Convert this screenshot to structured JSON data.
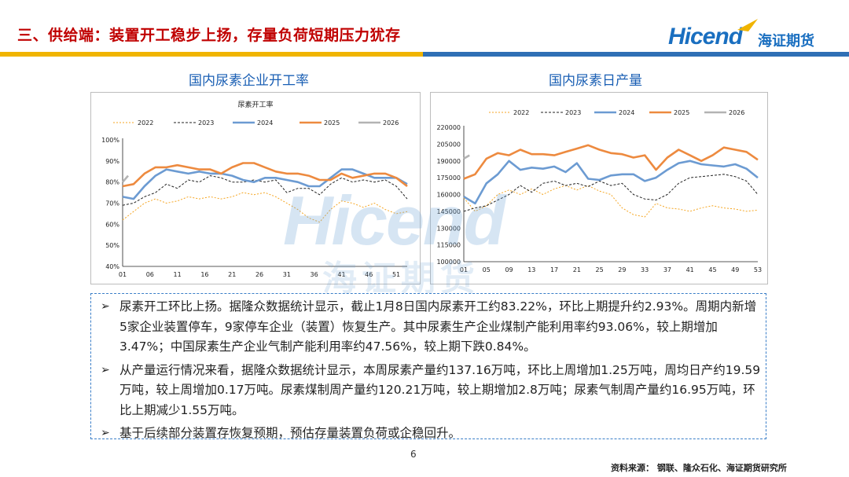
{
  "header": {
    "title": "三、供给端：装置开工稳步上扬，存量负荷短期压力犹存",
    "logo_text": "Hicend",
    "logo_cn": "海证期货"
  },
  "colors": {
    "title": "#c00000",
    "brand_blue": "#1a6fc0",
    "bar_yellow": "#f0b400",
    "bar_blue": "#2f6fb5",
    "s2022": "#f5a623",
    "s2023": "#222222",
    "s2024": "#6c9bd2",
    "s2025": "#ed8a3f",
    "s2026": "#b3b3b3"
  },
  "chart_titles": [
    "国内尿素企业开工率",
    "国内尿素日产量"
  ],
  "bullets": [
    "尿素开工环比上扬。据隆众数据统计显示，截止1月8日国内尿素开工约83.22%，环比上期提升约2.93%。周期内新增5家企业装置停车，9家停车企业（装置）恢复生产。其中尿素生产企业煤制产能利用率约93.06%，较上期增加3.47%；中国尿素生产企业气制产能利用率约47.56%，较上期下跌0.84%。",
    "从产量运行情况来看，据隆众数据统计显示，本周尿素产量约137.16万吨，环比上周增加1.25万吨，周均日产约19.59万吨，较上周增加0.17万吨。尿素煤制周产量约120.21万吨，较上期增加2.8万吨；尿素气制周产量约16.95万吨，环比上期减少1.55万吨。",
    "基于后续部分装置存恢复预期，预估存量装置负荷或企稳回升。"
  ],
  "page_number": "6",
  "source": "资料来源：  钢联、隆众石化、海证期货研究所",
  "chart_data": [
    {
      "type": "line",
      "title": "尿素开工率",
      "ylim": [
        40,
        100
      ],
      "yticks": [
        "100%",
        "90%",
        "80%",
        "70%",
        "60%",
        "50%",
        "40%"
      ],
      "ytick_values": [
        100,
        90,
        80,
        70,
        60,
        50,
        40
      ],
      "xlim": [
        1,
        53
      ],
      "xticks": [
        "01",
        "06",
        "11",
        "16",
        "21",
        "26",
        "31",
        "36",
        "41",
        "46",
        "51"
      ],
      "xtick_values": [
        1,
        6,
        11,
        16,
        21,
        26,
        31,
        36,
        41,
        46,
        51
      ],
      "legend_position": "top",
      "series": [
        {
          "name": "2022",
          "style": "dotted",
          "x": [
            1,
            3,
            5,
            7,
            9,
            11,
            13,
            15,
            17,
            19,
            21,
            23,
            25,
            27,
            29,
            31,
            33,
            35,
            37,
            39,
            41,
            43,
            45,
            47,
            49,
            51,
            53
          ],
          "values": [
            62,
            66,
            70,
            72,
            70,
            71,
            73,
            72,
            73,
            72,
            73,
            75,
            74,
            75,
            73,
            70,
            67,
            63,
            61,
            67,
            71,
            70,
            68,
            70,
            67,
            65,
            66
          ]
        },
        {
          "name": "2023",
          "style": "dashed",
          "x": [
            1,
            3,
            5,
            7,
            9,
            11,
            13,
            15,
            17,
            19,
            21,
            23,
            25,
            27,
            29,
            31,
            33,
            35,
            37,
            39,
            41,
            43,
            45,
            47,
            49,
            51,
            53
          ],
          "values": [
            69,
            70,
            73,
            75,
            79,
            77,
            81,
            80,
            83,
            82,
            80,
            80,
            81,
            80,
            81,
            75,
            77,
            77,
            74,
            79,
            82,
            80,
            81,
            80,
            81,
            78,
            72
          ]
        },
        {
          "name": "2024",
          "style": "solid",
          "x": [
            1,
            3,
            5,
            7,
            9,
            11,
            13,
            15,
            17,
            19,
            21,
            23,
            25,
            27,
            29,
            31,
            33,
            35,
            37,
            39,
            41,
            43,
            45,
            47,
            49,
            51,
            53
          ],
          "values": [
            73,
            72,
            78,
            83,
            86,
            85,
            84,
            85,
            84,
            84,
            83,
            81,
            80,
            82,
            82,
            81,
            80,
            78,
            78,
            82,
            86,
            86,
            84,
            82,
            82,
            82,
            79
          ]
        },
        {
          "name": "2025",
          "style": "solid",
          "x": [
            1,
            3,
            5,
            7,
            9,
            11,
            13,
            15,
            17,
            19,
            21,
            23,
            25,
            27,
            29,
            31,
            33,
            35,
            37,
            39,
            41,
            43,
            45,
            47,
            49,
            51,
            53
          ],
          "values": [
            78,
            79,
            84,
            87,
            87,
            88,
            87,
            86,
            86,
            84,
            87,
            89,
            89,
            87,
            85,
            84,
            84,
            83,
            81,
            81,
            84,
            82,
            83,
            84,
            84,
            82,
            78
          ]
        },
        {
          "name": "2026",
          "style": "solid",
          "x": [
            1,
            2
          ],
          "values": [
            80,
            83
          ]
        }
      ]
    },
    {
      "type": "line",
      "title": "",
      "ylim": [
        100000,
        220000
      ],
      "yticks": [
        "220000",
        "205000",
        "190000",
        "175000",
        "160000",
        "145000",
        "130000",
        "115000",
        "100000"
      ],
      "ytick_values": [
        220000,
        205000,
        190000,
        175000,
        160000,
        145000,
        130000,
        115000,
        100000
      ],
      "xlim": [
        1,
        53
      ],
      "xticks": [
        "01",
        "05",
        "09",
        "13",
        "17",
        "21",
        "25",
        "29",
        "33",
        "37",
        "41",
        "45",
        "49",
        "53"
      ],
      "xtick_values": [
        1,
        5,
        9,
        13,
        17,
        21,
        25,
        29,
        33,
        37,
        41,
        45,
        49,
        53
      ],
      "legend_position": "top",
      "series": [
        {
          "name": "2022",
          "style": "dotted",
          "x": [
            1,
            3,
            5,
            7,
            9,
            11,
            13,
            15,
            17,
            19,
            21,
            23,
            25,
            27,
            29,
            31,
            33,
            35,
            37,
            39,
            41,
            43,
            45,
            47,
            49,
            51,
            53
          ],
          "values": [
            157000,
            145000,
            150000,
            160000,
            164000,
            160000,
            165000,
            160000,
            165000,
            168000,
            164000,
            168000,
            163000,
            160000,
            148000,
            142000,
            140000,
            152000,
            148000,
            147000,
            145000,
            148000,
            150000,
            148000,
            147000,
            145000,
            146000
          ]
        },
        {
          "name": "2023",
          "style": "dashed",
          "x": [
            1,
            3,
            5,
            7,
            9,
            11,
            13,
            15,
            17,
            19,
            21,
            23,
            25,
            27,
            29,
            31,
            33,
            35,
            37,
            39,
            41,
            43,
            45,
            47,
            49,
            51,
            53
          ],
          "values": [
            145000,
            148000,
            150000,
            155000,
            160000,
            168000,
            162000,
            170000,
            172000,
            168000,
            170000,
            167000,
            172000,
            168000,
            170000,
            160000,
            156000,
            155000,
            160000,
            170000,
            175000,
            176000,
            177000,
            178000,
            176000,
            172000,
            160000
          ]
        },
        {
          "name": "2024",
          "style": "solid",
          "x": [
            1,
            3,
            5,
            7,
            9,
            11,
            13,
            15,
            17,
            19,
            21,
            23,
            25,
            27,
            29,
            31,
            33,
            35,
            37,
            39,
            41,
            43,
            45,
            47,
            49,
            51,
            53
          ],
          "values": [
            158000,
            152000,
            170000,
            178000,
            190000,
            182000,
            184000,
            183000,
            185000,
            180000,
            188000,
            174000,
            173000,
            177000,
            178000,
            178000,
            172000,
            175000,
            182000,
            188000,
            190000,
            187000,
            186000,
            185000,
            187000,
            183000,
            175000
          ]
        },
        {
          "name": "2025",
          "style": "solid",
          "x": [
            1,
            3,
            5,
            7,
            9,
            11,
            13,
            15,
            17,
            19,
            21,
            23,
            25,
            27,
            29,
            31,
            33,
            35,
            37,
            39,
            41,
            43,
            45,
            47,
            49,
            51,
            53
          ],
          "values": [
            174000,
            178000,
            192000,
            197000,
            195000,
            200000,
            196000,
            196000,
            195000,
            198000,
            201000,
            204000,
            200000,
            197000,
            196000,
            193000,
            195000,
            182000,
            193000,
            200000,
            195000,
            190000,
            195000,
            202000,
            200000,
            198000,
            191000
          ]
        },
        {
          "name": "2026",
          "style": "solid",
          "x": [
            1,
            2
          ],
          "values": [
            192000,
            195000
          ]
        }
      ]
    }
  ]
}
